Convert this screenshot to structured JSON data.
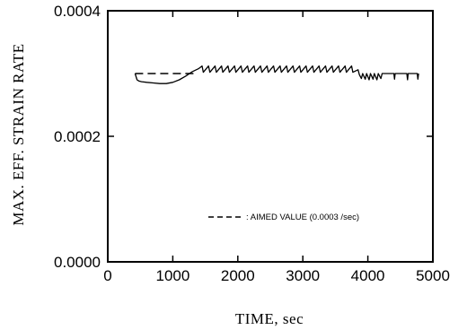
{
  "chart_data": {
    "type": "line",
    "title": "",
    "xlabel": "TIME, sec",
    "ylabel": "MAX. EFF. STRAIN RATE",
    "xlim": [
      0,
      5000
    ],
    "ylim": [
      0.0,
      0.0004
    ],
    "x_ticks": [
      0,
      1000,
      2000,
      3000,
      4000,
      5000
    ],
    "x_tick_labels": [
      "0",
      "1000",
      "2000",
      "3000",
      "4000",
      "5000"
    ],
    "y_ticks": [
      0.0,
      0.0002,
      0.0004
    ],
    "y_tick_labels": [
      "0.0000",
      "0.0002",
      "0.0004"
    ],
    "grid": false,
    "legend_position": "lower-right",
    "series": [
      {
        "name": "",
        "style": "solid",
        "x": [
          420,
          450,
          480,
          520,
          600,
          700,
          800,
          900,
          1000,
          1100,
          1200,
          1300,
          1400,
          1450,
          1470,
          1550,
          1570,
          1650,
          1670,
          1750,
          1770,
          1850,
          1870,
          1950,
          1970,
          2050,
          2070,
          2150,
          2170,
          2250,
          2270,
          2350,
          2370,
          2450,
          2470,
          2550,
          2570,
          2650,
          2670,
          2750,
          2770,
          2850,
          2870,
          2950,
          2970,
          3050,
          3070,
          3150,
          3170,
          3250,
          3270,
          3350,
          3370,
          3450,
          3470,
          3550,
          3570,
          3650,
          3670,
          3750,
          3770,
          3850,
          3870,
          3900,
          3920,
          3960,
          3980,
          4020,
          4040,
          4080,
          4100,
          4140,
          4160,
          4200,
          4220,
          4400,
          4410,
          4420,
          4600,
          4610,
          4620,
          4760,
          4770,
          4780
        ],
        "y": [
          0.0003,
          0.00029,
          0.000288,
          0.000287,
          0.000286,
          0.000285,
          0.000284,
          0.000284,
          0.000286,
          0.00029,
          0.000296,
          0.000303,
          0.000308,
          0.000312,
          0.000302,
          0.000312,
          0.000302,
          0.000312,
          0.000302,
          0.000312,
          0.000302,
          0.000312,
          0.000302,
          0.000312,
          0.000302,
          0.000312,
          0.000302,
          0.000312,
          0.000302,
          0.000312,
          0.000302,
          0.000312,
          0.000302,
          0.000312,
          0.000302,
          0.000312,
          0.000302,
          0.000312,
          0.000302,
          0.000312,
          0.000302,
          0.000312,
          0.000302,
          0.000312,
          0.000302,
          0.000312,
          0.000302,
          0.000312,
          0.000302,
          0.000312,
          0.000302,
          0.000312,
          0.000302,
          0.000312,
          0.000302,
          0.000312,
          0.000302,
          0.000312,
          0.000302,
          0.000312,
          0.000302,
          0.000306,
          0.000298,
          0.000292,
          0.0003,
          0.000291,
          0.0003,
          0.00029,
          0.0003,
          0.000291,
          0.0003,
          0.00029,
          0.0003,
          0.000292,
          0.0003,
          0.0003,
          0.000291,
          0.0003,
          0.0003,
          0.00029,
          0.0003,
          0.0003,
          0.000291,
          0.0003
        ]
      },
      {
        "name": ": AIMED VALUE (0.0003 /sec)",
        "style": "dashed",
        "x": [
          420,
          1350
        ],
        "y": [
          0.0003,
          0.0003
        ]
      }
    ],
    "legend": [
      {
        "label": ": AIMED VALUE (0.0003 /sec)",
        "style": "dashed"
      }
    ]
  }
}
